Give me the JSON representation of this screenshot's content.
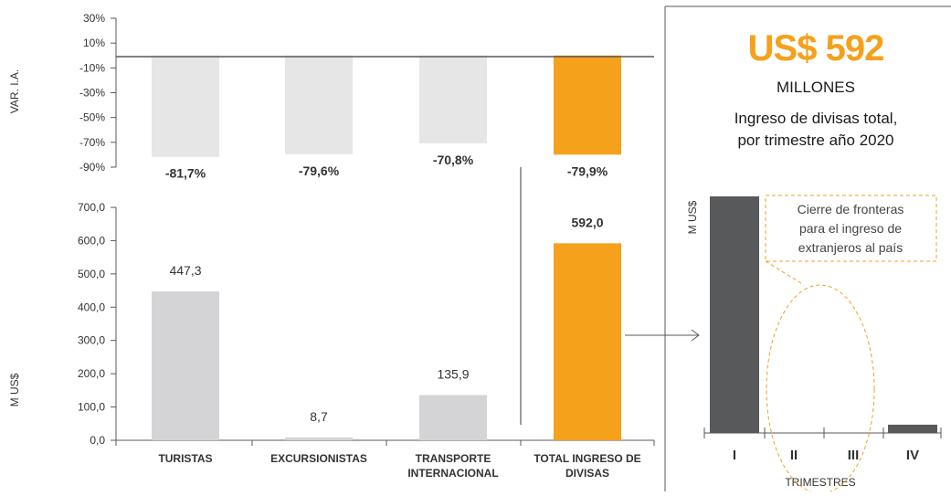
{
  "colors": {
    "gray_bar": "#d4d4d6",
    "gray_bar_light": "#e6e6e7",
    "orange": "#f5a11c",
    "dark_bar": "#58595b",
    "axis": "#595959",
    "text": "#333333"
  },
  "chart_data": [
    {
      "type": "bar",
      "ylabel": "VAR. I.A.",
      "categories": [
        "TURISTAS",
        "EXCURSIONISTAS",
        "TRANSPORTE INTERNACIONAL",
        "TOTAL INGRESO DE DIVISAS"
      ],
      "values": [
        -81.7,
        -79.6,
        -70.8,
        -79.9
      ],
      "value_labels": [
        "-81,7%",
        "-79,6%",
        "-70,8%",
        "-79,9%"
      ],
      "ylim": [
        -90,
        30
      ],
      "y_ticks": [
        "30%",
        "10%",
        "-10%",
        "-30%",
        "-50%",
        "-70%",
        "-90%"
      ],
      "y_tick_values": [
        30,
        10,
        -10,
        -30,
        -50,
        -70,
        -90
      ],
      "highlight": "TOTAL INGRESO DE DIVISAS"
    },
    {
      "type": "bar",
      "ylabel": "M US$",
      "categories": [
        "TURISTAS",
        "EXCURSIONISTAS",
        "TRANSPORTE INTERNACIONAL",
        "TOTAL INGRESO DE DIVISAS"
      ],
      "category_lines": [
        [
          "TURISTAS"
        ],
        [
          "EXCURSIONISTAS"
        ],
        [
          "TRANSPORTE",
          "INTERNACIONAL"
        ],
        [
          "TOTAL INGRESO DE",
          "DIVISAS"
        ]
      ],
      "values": [
        447.3,
        8.7,
        135.9,
        592.0
      ],
      "value_labels": [
        "447,3",
        "8,7",
        "135,9",
        "592,0"
      ],
      "ylim": [
        0,
        700
      ],
      "y_ticks": [
        "700,0",
        "600,0",
        "500,0",
        "400,0",
        "300,0",
        "200,0",
        "100,0",
        "0,0"
      ],
      "y_tick_values": [
        700,
        600,
        500,
        400,
        300,
        200,
        100,
        0
      ],
      "highlight": "TOTAL INGRESO DE DIVISAS"
    },
    {
      "type": "bar",
      "ylabel": "M US$",
      "xlabel": "TRIMESTRES",
      "categories": [
        "I",
        "II",
        "III",
        "IV"
      ],
      "values": [
        1000,
        0,
        0,
        35
      ],
      "annotation": [
        "Cierre de fronteras",
        "para el ingreso de",
        "extranjeros al país"
      ]
    }
  ],
  "panel": {
    "headline": "US$ 592",
    "unit": "MILLONES",
    "caption_line1": "Ingreso de divisas total,",
    "caption_line2": "por trimestre año 2020"
  }
}
